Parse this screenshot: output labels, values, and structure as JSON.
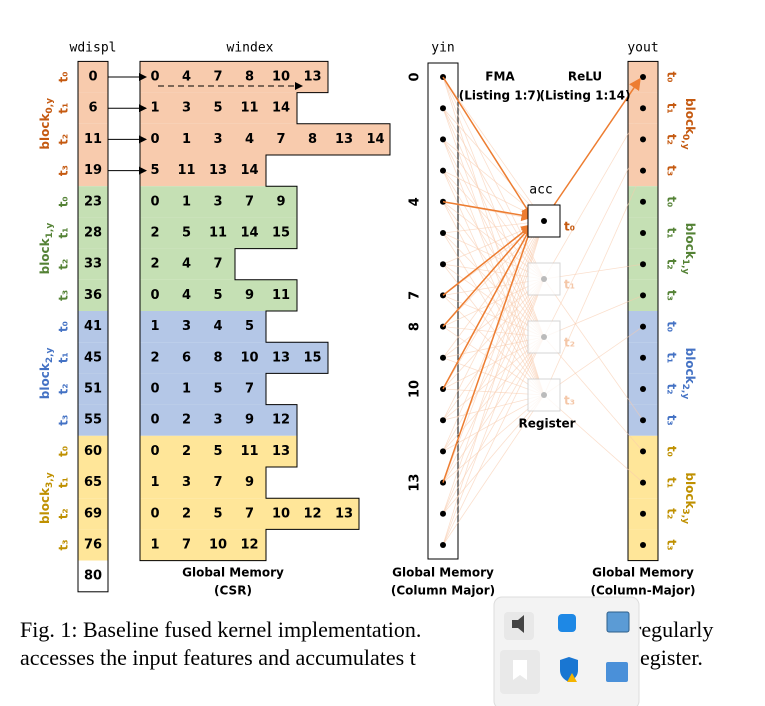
{
  "headers": {
    "wdispl": "wdispl",
    "windex": "windex",
    "yin": "yin",
    "yout": "yout"
  },
  "wdispl": [
    0,
    6,
    11,
    19,
    23,
    28,
    33,
    36,
    41,
    45,
    51,
    55,
    60,
    65,
    69,
    76,
    80
  ],
  "windex": [
    [
      0,
      4,
      7,
      8,
      10,
      13
    ],
    [
      1,
      3,
      5,
      11,
      14
    ],
    [
      0,
      1,
      3,
      4,
      7,
      8,
      13,
      14
    ],
    [
      5,
      11,
      13,
      14
    ],
    [
      0,
      1,
      3,
      7,
      9
    ],
    [
      2,
      5,
      11,
      14,
      15
    ],
    [
      2,
      4,
      7
    ],
    [
      0,
      4,
      5,
      9,
      11
    ],
    [
      1,
      3,
      4,
      5
    ],
    [
      2,
      6,
      8,
      10,
      13,
      15
    ],
    [
      0,
      1,
      5,
      7
    ],
    [
      0,
      2,
      3,
      9,
      12
    ],
    [
      0,
      2,
      5,
      11,
      13
    ],
    [
      1,
      3,
      7,
      9
    ],
    [
      0,
      2,
      5,
      7,
      10,
      12,
      13
    ],
    [
      1,
      7,
      10,
      12
    ]
  ],
  "threads": [
    "t₀",
    "t₁",
    "t₂",
    "t₃"
  ],
  "blocks": [
    {
      "name": "block",
      "sub": "0,y"
    },
    {
      "name": "block",
      "sub": "1,y"
    },
    {
      "name": "block",
      "sub": "2,y"
    },
    {
      "name": "block",
      "sub": "3,y"
    }
  ],
  "yin_labels": [
    0,
    4,
    7,
    8,
    10,
    13
  ],
  "acc": "acc",
  "fma": {
    "title": "FMA",
    "ref": "(Listing 1:7)"
  },
  "relu": {
    "title": "ReLU",
    "ref": "(Listing 1:14)"
  },
  "register": "Register",
  "footers": {
    "csr": [
      "Global Memory",
      "(CSR)"
    ],
    "yin": [
      "Global Memory",
      "(Column Major)"
    ],
    "yout": [
      "Global Memory",
      "(Column-Major)"
    ]
  },
  "caption": {
    "line1a": "Fig. 1: Baseline fused kernel implementation.",
    "line1b": "regularly",
    "line2a": "accesses the input features and accumulates t",
    "line2b": "egister."
  }
}
